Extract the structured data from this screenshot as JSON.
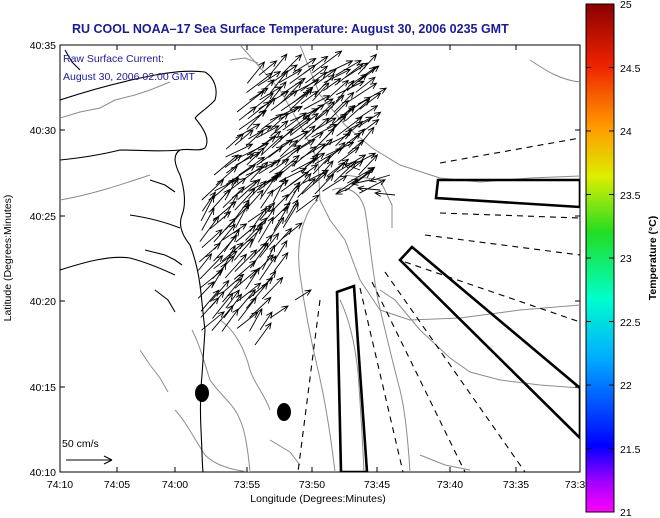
{
  "title": "RU COOL  NOAA–17  Sea Surface Temperature:  August 30, 2006 0235 GMT",
  "annotation": {
    "line1": "Raw Surface Current:",
    "line2": "August 30, 2006 02:00 GMT"
  },
  "scale_label": "50 cm/s",
  "axes": {
    "xlabel": "Longitude (Degrees:Minutes)",
    "ylabel": "Latitude (Degrees:Minutes)",
    "x_ticks": [
      "74:10",
      "74:05",
      "74:00",
      "73:55",
      "73:50",
      "73:45",
      "73:40",
      "73:35",
      "73:3"
    ],
    "y_ticks": [
      "40:35",
      "40:30",
      "40:25",
      "40:20",
      "40:15",
      "40:10"
    ]
  },
  "colorbar": {
    "label": "Temperature (°C)",
    "ticks": [
      "25",
      "24.5",
      "24",
      "23.5",
      "23",
      "22.5",
      "22",
      "21.5",
      "21"
    ],
    "range": [
      21,
      25
    ]
  },
  "colors": {
    "title": "#1a1aa0",
    "land_outline": "#000000",
    "bathymetry": "#8c8c8c"
  }
}
